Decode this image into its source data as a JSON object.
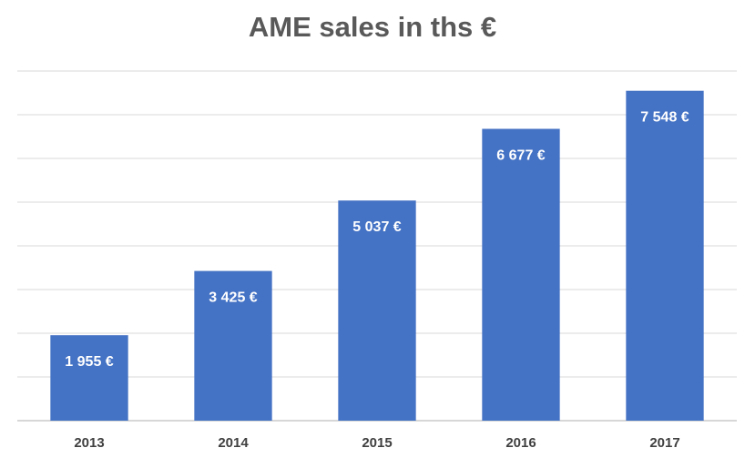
{
  "chart_data": {
    "type": "bar",
    "title": "AME sales in ths €",
    "xlabel": "",
    "ylabel": "",
    "categories": [
      "2013",
      "2014",
      "2015",
      "2016",
      "2017"
    ],
    "values": [
      1955,
      3425,
      5037,
      6677,
      7548
    ],
    "data_labels": [
      "1 955 €",
      "3 425 €",
      "5 037 €",
      "6 677 €",
      "7 548 €"
    ],
    "ylim": [
      0,
      8000
    ],
    "grid": true,
    "legend": "none",
    "colors": {
      "bar": "#4472C4",
      "grid": "#D9D9D9",
      "axis": "#BFBFBF",
      "title": "#595959",
      "tick_text": "#404040",
      "value_text": "#FFFFFF"
    }
  }
}
